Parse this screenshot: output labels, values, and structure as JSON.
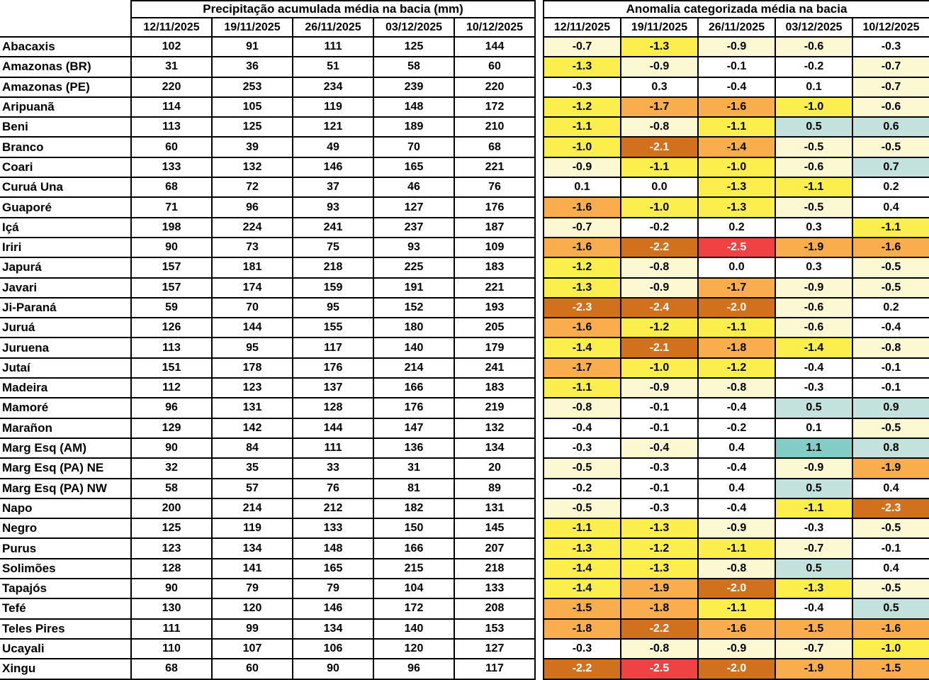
{
  "page": {
    "background": "#ffffff",
    "grid_line_color": "#000000"
  },
  "chart_data": [
    {
      "type": "table",
      "title": "Precipitação acumulada média na bacia (mm)",
      "columns": [
        "12/11/2025",
        "19/11/2025",
        "26/11/2025",
        "03/12/2025",
        "10/12/2025"
      ],
      "rows": [
        {
          "basin": "Abacaxis",
          "values": [
            102,
            91,
            111,
            125,
            144
          ]
        },
        {
          "basin": "Amazonas (BR)",
          "values": [
            31,
            36,
            51,
            58,
            60
          ]
        },
        {
          "basin": "Amazonas (PE)",
          "values": [
            220,
            253,
            234,
            239,
            220
          ]
        },
        {
          "basin": "Aripuanã",
          "values": [
            114,
            105,
            119,
            148,
            172
          ]
        },
        {
          "basin": "Beni",
          "values": [
            113,
            125,
            121,
            189,
            210
          ]
        },
        {
          "basin": "Branco",
          "values": [
            60,
            39,
            49,
            70,
            68
          ]
        },
        {
          "basin": "Coari",
          "values": [
            133,
            132,
            146,
            165,
            221
          ]
        },
        {
          "basin": "Curuá Una",
          "values": [
            68,
            72,
            37,
            46,
            76
          ]
        },
        {
          "basin": "Guaporé",
          "values": [
            71,
            96,
            93,
            127,
            176
          ]
        },
        {
          "basin": "Içá",
          "values": [
            198,
            224,
            241,
            237,
            187
          ]
        },
        {
          "basin": "Iriri",
          "values": [
            90,
            73,
            75,
            93,
            109
          ]
        },
        {
          "basin": "Japurá",
          "values": [
            157,
            181,
            218,
            225,
            183
          ]
        },
        {
          "basin": "Javari",
          "values": [
            157,
            174,
            159,
            191,
            221
          ]
        },
        {
          "basin": "Ji-Paraná",
          "values": [
            59,
            70,
            95,
            152,
            193
          ]
        },
        {
          "basin": "Juruá",
          "values": [
            126,
            144,
            155,
            180,
            205
          ]
        },
        {
          "basin": "Juruena",
          "values": [
            113,
            95,
            117,
            140,
            179
          ]
        },
        {
          "basin": "Jutaí",
          "values": [
            151,
            178,
            176,
            214,
            241
          ]
        },
        {
          "basin": "Madeira",
          "values": [
            112,
            123,
            137,
            166,
            183
          ]
        },
        {
          "basin": "Mamoré",
          "values": [
            96,
            131,
            128,
            176,
            219
          ]
        },
        {
          "basin": "Marañon",
          "values": [
            129,
            142,
            144,
            147,
            132
          ]
        },
        {
          "basin": "Marg Esq (AM)",
          "values": [
            90,
            84,
            111,
            136,
            134
          ]
        },
        {
          "basin": "Marg Esq (PA) NE",
          "values": [
            32,
            35,
            33,
            31,
            20
          ]
        },
        {
          "basin": "Marg Esq (PA) NW",
          "values": [
            58,
            57,
            76,
            81,
            89
          ]
        },
        {
          "basin": "Napo",
          "values": [
            200,
            214,
            212,
            182,
            131
          ]
        },
        {
          "basin": "Negro",
          "values": [
            125,
            119,
            133,
            150,
            145
          ]
        },
        {
          "basin": "Purus",
          "values": [
            123,
            134,
            148,
            166,
            207
          ]
        },
        {
          "basin": "Solimões",
          "values": [
            128,
            141,
            165,
            215,
            218
          ]
        },
        {
          "basin": "Tapajós",
          "values": [
            90,
            79,
            79,
            104,
            133
          ]
        },
        {
          "basin": "Tefé",
          "values": [
            130,
            120,
            146,
            172,
            208
          ]
        },
        {
          "basin": "Teles Pires",
          "values": [
            111,
            99,
            134,
            140,
            153
          ]
        },
        {
          "basin": "Ucayali",
          "values": [
            110,
            107,
            106,
            120,
            127
          ]
        },
        {
          "basin": "Xingu",
          "values": [
            68,
            60,
            90,
            96,
            117
          ]
        }
      ]
    },
    {
      "type": "table",
      "title": "Anomalia categorizada média na bacia",
      "columns": [
        "12/11/2025",
        "19/11/2025",
        "26/11/2025",
        "03/12/2025",
        "10/12/2025"
      ],
      "category_colors": {
        "white": "#ffffff",
        "cream": "#fcf8d2",
        "yellow": "#fcee4d",
        "orange": "#f9ad4c",
        "dark_orange": "#d2711d",
        "red": "#f04243",
        "light_blue": "#c3e2de",
        "teal": "#84cdc6"
      },
      "white_text_categories": [
        "dark_orange",
        "red"
      ],
      "rows": [
        {
          "basin": "Abacaxis",
          "values": [
            "-0.7",
            "-1.3",
            "-0.9",
            "-0.6",
            "-0.3"
          ],
          "categories": [
            "cream",
            "yellow",
            "cream",
            "cream",
            "white"
          ]
        },
        {
          "basin": "Amazonas (BR)",
          "values": [
            "-1.3",
            "-0.9",
            "-0.1",
            "-0.2",
            "-0.7"
          ],
          "categories": [
            "yellow",
            "cream",
            "white",
            "white",
            "cream"
          ]
        },
        {
          "basin": "Amazonas (PE)",
          "values": [
            "-0.3",
            "0.3",
            "-0.4",
            "0.1",
            "-0.7"
          ],
          "categories": [
            "white",
            "white",
            "white",
            "white",
            "cream"
          ]
        },
        {
          "basin": "Aripuanã",
          "values": [
            "-1.2",
            "-1.7",
            "-1.6",
            "-1.0",
            "-0.6"
          ],
          "categories": [
            "yellow",
            "orange",
            "orange",
            "yellow",
            "cream"
          ]
        },
        {
          "basin": "Beni",
          "values": [
            "-1.1",
            "-0.8",
            "-1.1",
            "0.5",
            "0.6"
          ],
          "categories": [
            "yellow",
            "cream",
            "yellow",
            "light_blue",
            "light_blue"
          ]
        },
        {
          "basin": "Branco",
          "values": [
            "-1.0",
            "-2.1",
            "-1.4",
            "-0.5",
            "-0.5"
          ],
          "categories": [
            "yellow",
            "dark_orange",
            "orange",
            "cream",
            "cream"
          ]
        },
        {
          "basin": "Coari",
          "values": [
            "-0.9",
            "-1.1",
            "-1.0",
            "-0.6",
            "0.7"
          ],
          "categories": [
            "cream",
            "yellow",
            "yellow",
            "cream",
            "light_blue"
          ]
        },
        {
          "basin": "Curuá Una",
          "values": [
            "0.1",
            "0.0",
            "-1.3",
            "-1.1",
            "0.2"
          ],
          "categories": [
            "white",
            "white",
            "yellow",
            "yellow",
            "white"
          ]
        },
        {
          "basin": "Guaporé",
          "values": [
            "-1.6",
            "-1.0",
            "-1.3",
            "-0.5",
            "0.4"
          ],
          "categories": [
            "orange",
            "yellow",
            "yellow",
            "cream",
            "white"
          ]
        },
        {
          "basin": "Içá",
          "values": [
            "-0.7",
            "-0.2",
            "0.2",
            "0.3",
            "-1.1"
          ],
          "categories": [
            "cream",
            "white",
            "white",
            "white",
            "yellow"
          ]
        },
        {
          "basin": "Iriri",
          "values": [
            "-1.6",
            "-2.2",
            "-2.5",
            "-1.9",
            "-1.6"
          ],
          "categories": [
            "orange",
            "dark_orange",
            "red",
            "orange",
            "orange"
          ]
        },
        {
          "basin": "Japurá",
          "values": [
            "-1.2",
            "-0.8",
            "0.0",
            "0.3",
            "-0.5"
          ],
          "categories": [
            "yellow",
            "cream",
            "white",
            "white",
            "cream"
          ]
        },
        {
          "basin": "Javari",
          "values": [
            "-1.3",
            "-0.9",
            "-1.7",
            "-0.9",
            "-0.5"
          ],
          "categories": [
            "yellow",
            "cream",
            "orange",
            "cream",
            "cream"
          ]
        },
        {
          "basin": "Ji-Paraná",
          "values": [
            "-2.3",
            "-2.4",
            "-2.0",
            "-0.6",
            "0.2"
          ],
          "categories": [
            "dark_orange",
            "dark_orange",
            "dark_orange",
            "cream",
            "white"
          ]
        },
        {
          "basin": "Juruá",
          "values": [
            "-1.6",
            "-1.2",
            "-1.1",
            "-0.6",
            "-0.4"
          ],
          "categories": [
            "orange",
            "yellow",
            "yellow",
            "cream",
            "white"
          ]
        },
        {
          "basin": "Juruena",
          "values": [
            "-1.4",
            "-2.1",
            "-1.8",
            "-1.4",
            "-0.8"
          ],
          "categories": [
            "yellow",
            "dark_orange",
            "orange",
            "yellow",
            "cream"
          ]
        },
        {
          "basin": "Jutaí",
          "values": [
            "-1.7",
            "-1.0",
            "-1.2",
            "-0.4",
            "-0.1"
          ],
          "categories": [
            "orange",
            "yellow",
            "yellow",
            "white",
            "white"
          ]
        },
        {
          "basin": "Madeira",
          "values": [
            "-1.1",
            "-0.9",
            "-0.8",
            "-0.3",
            "-0.1"
          ],
          "categories": [
            "yellow",
            "cream",
            "cream",
            "white",
            "white"
          ]
        },
        {
          "basin": "Mamoré",
          "values": [
            "-0.8",
            "-0.1",
            "-0.4",
            "0.5",
            "0.9"
          ],
          "categories": [
            "cream",
            "white",
            "white",
            "light_blue",
            "light_blue"
          ]
        },
        {
          "basin": "Marañon",
          "values": [
            "-0.4",
            "-0.1",
            "-0.2",
            "0.1",
            "-0.5"
          ],
          "categories": [
            "white",
            "white",
            "white",
            "white",
            "cream"
          ]
        },
        {
          "basin": "Marg Esq (AM)",
          "values": [
            "-0.3",
            "-0.4",
            "0.4",
            "1.1",
            "0.8"
          ],
          "categories": [
            "white",
            "cream",
            "white",
            "teal",
            "light_blue"
          ]
        },
        {
          "basin": "Marg Esq (PA) NE",
          "values": [
            "-0.5",
            "-0.3",
            "-0.4",
            "-0.9",
            "-1.9"
          ],
          "categories": [
            "cream",
            "white",
            "white",
            "cream",
            "orange"
          ]
        },
        {
          "basin": "Marg Esq (PA) NW",
          "values": [
            "-0.2",
            "-0.1",
            "0.4",
            "0.5",
            "0.4"
          ],
          "categories": [
            "white",
            "white",
            "white",
            "light_blue",
            "white"
          ]
        },
        {
          "basin": "Napo",
          "values": [
            "-0.5",
            "-0.3",
            "-0.4",
            "-1.1",
            "-2.3"
          ],
          "categories": [
            "cream",
            "white",
            "white",
            "yellow",
            "dark_orange"
          ]
        },
        {
          "basin": "Negro",
          "values": [
            "-1.1",
            "-1.3",
            "-0.9",
            "-0.3",
            "-0.5"
          ],
          "categories": [
            "yellow",
            "yellow",
            "cream",
            "white",
            "cream"
          ]
        },
        {
          "basin": "Purus",
          "values": [
            "-1.3",
            "-1.2",
            "-1.1",
            "-0.7",
            "-0.1"
          ],
          "categories": [
            "yellow",
            "yellow",
            "yellow",
            "cream",
            "white"
          ]
        },
        {
          "basin": "Solimões",
          "values": [
            "-1.4",
            "-1.3",
            "-0.8",
            "0.5",
            "0.4"
          ],
          "categories": [
            "yellow",
            "yellow",
            "cream",
            "light_blue",
            "white"
          ]
        },
        {
          "basin": "Tapajós",
          "values": [
            "-1.4",
            "-1.9",
            "-2.0",
            "-1.3",
            "-0.5"
          ],
          "categories": [
            "yellow",
            "orange",
            "dark_orange",
            "yellow",
            "cream"
          ]
        },
        {
          "basin": "Tefé",
          "values": [
            "-1.5",
            "-1.8",
            "-1.1",
            "-0.4",
            "0.5"
          ],
          "categories": [
            "orange",
            "orange",
            "yellow",
            "white",
            "light_blue"
          ]
        },
        {
          "basin": "Teles Pires",
          "values": [
            "-1.8",
            "-2.2",
            "-1.6",
            "-1.5",
            "-1.6"
          ],
          "categories": [
            "orange",
            "dark_orange",
            "orange",
            "orange",
            "orange"
          ]
        },
        {
          "basin": "Ucayali",
          "values": [
            "-0.3",
            "-0.8",
            "-0.9",
            "-0.7",
            "-1.0"
          ],
          "categories": [
            "white",
            "cream",
            "cream",
            "cream",
            "yellow"
          ]
        },
        {
          "basin": "Xingu",
          "values": [
            "-2.2",
            "-2.5",
            "-2.0",
            "-1.9",
            "-1.5"
          ],
          "categories": [
            "dark_orange",
            "red",
            "dark_orange",
            "orange",
            "orange"
          ]
        }
      ]
    }
  ]
}
